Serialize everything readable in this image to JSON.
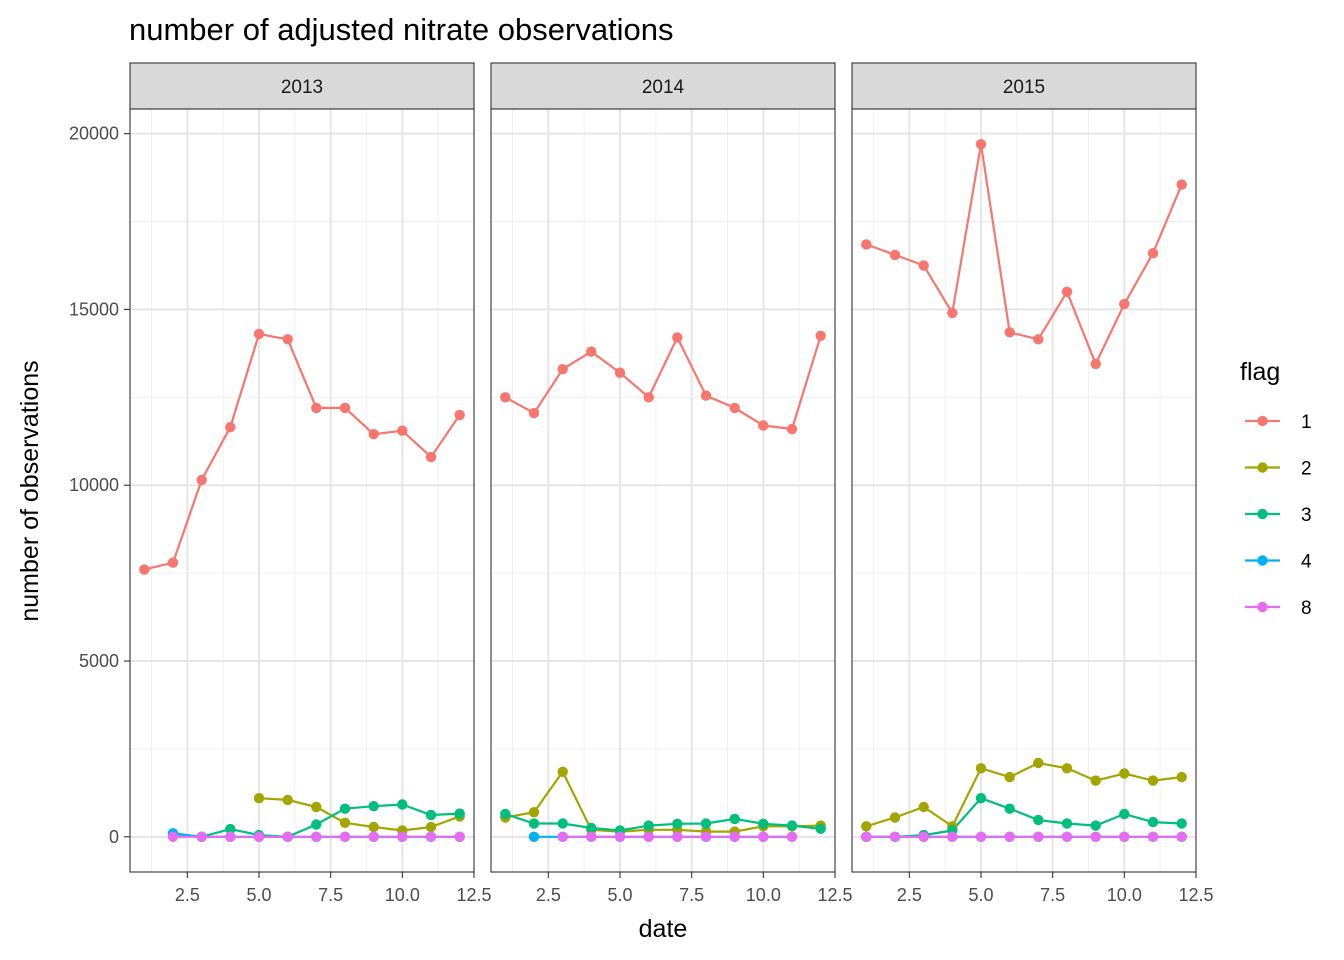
{
  "chart_data": {
    "type": "line",
    "title": "number of adjusted nitrate observations",
    "xlabel": "date",
    "ylabel": "number of observations",
    "xlim": [
      0.5,
      12.5
    ],
    "ylim": [
      -1000,
      20700
    ],
    "x_ticks": [
      2.5,
      5.0,
      7.5,
      10.0,
      12.5
    ],
    "x_tick_labels": [
      "2.5",
      "5.0",
      "7.5",
      "10.0",
      "12.5"
    ],
    "y_ticks": [
      0,
      5000,
      10000,
      15000,
      20000
    ],
    "y_tick_labels": [
      "0",
      "5000",
      "10000",
      "15000",
      "20000"
    ],
    "grid": true,
    "legend": {
      "title": "flag",
      "position": "right"
    },
    "panels": [
      {
        "label": "2013",
        "series": [
          {
            "name": "1",
            "color": "#F8766D",
            "points": [
              [
                1,
                7600
              ],
              [
                2,
                7800
              ],
              [
                3,
                10150
              ],
              [
                4,
                11650
              ],
              [
                5,
                14300
              ],
              [
                6,
                14150
              ],
              [
                7,
                12200
              ],
              [
                8,
                12200
              ],
              [
                9,
                11450
              ],
              [
                10,
                11550
              ],
              [
                11,
                10800
              ],
              [
                12,
                12000
              ]
            ]
          },
          {
            "name": "2",
            "color": "#A3A500",
            "points": [
              [
                5,
                1100
              ],
              [
                6,
                1050
              ],
              [
                7,
                850
              ],
              [
                8,
                400
              ],
              [
                9,
                280
              ],
              [
                10,
                180
              ],
              [
                11,
                280
              ],
              [
                12,
                580
              ]
            ]
          },
          {
            "name": "3",
            "color": "#00BF7D",
            "points": [
              [
                2,
                80
              ],
              [
                3,
                0
              ],
              [
                4,
                220
              ],
              [
                5,
                50
              ],
              [
                6,
                0
              ],
              [
                7,
                350
              ],
              [
                8,
                800
              ],
              [
                9,
                870
              ],
              [
                10,
                920
              ],
              [
                11,
                620
              ],
              [
                12,
                660
              ]
            ]
          },
          {
            "name": "4",
            "color": "#00B0F6",
            "points": [
              [
                2,
                100
              ],
              [
                3,
                0
              ],
              [
                4,
                0
              ],
              [
                5,
                0
              ],
              [
                6,
                0
              ],
              [
                7,
                0
              ],
              [
                8,
                0
              ],
              [
                9,
                0
              ],
              [
                10,
                0
              ],
              [
                11,
                0
              ],
              [
                12,
                0
              ]
            ]
          },
          {
            "name": "8",
            "color": "#E76BF3",
            "points": [
              [
                2,
                0
              ],
              [
                3,
                0
              ],
              [
                4,
                0
              ],
              [
                5,
                0
              ],
              [
                6,
                0
              ],
              [
                7,
                0
              ],
              [
                8,
                0
              ],
              [
                9,
                0
              ],
              [
                10,
                0
              ],
              [
                11,
                0
              ],
              [
                12,
                0
              ]
            ]
          }
        ]
      },
      {
        "label": "2014",
        "series": [
          {
            "name": "1",
            "color": "#F8766D",
            "points": [
              [
                1,
                12500
              ],
              [
                2,
                12050
              ],
              [
                3,
                13300
              ],
              [
                4,
                13800
              ],
              [
                5,
                13200
              ],
              [
                6,
                12500
              ],
              [
                7,
                14200
              ],
              [
                8,
                12550
              ],
              [
                9,
                12200
              ],
              [
                10,
                11700
              ],
              [
                11,
                11600
              ],
              [
                12,
                14250
              ]
            ]
          },
          {
            "name": "2",
            "color": "#A3A500",
            "points": [
              [
                1,
                550
              ],
              [
                2,
                700
              ],
              [
                3,
                1850
              ],
              [
                4,
                200
              ],
              [
                5,
                150
              ],
              [
                6,
                200
              ],
              [
                7,
                200
              ],
              [
                8,
                150
              ],
              [
                9,
                150
              ],
              [
                10,
                300
              ],
              [
                11,
                300
              ],
              [
                12,
                320
              ]
            ]
          },
          {
            "name": "3",
            "color": "#00BF7D",
            "points": [
              [
                1,
                650
              ],
              [
                2,
                380
              ],
              [
                3,
                380
              ],
              [
                4,
                250
              ],
              [
                5,
                180
              ],
              [
                6,
                320
              ],
              [
                7,
                370
              ],
              [
                8,
                380
              ],
              [
                9,
                510
              ],
              [
                10,
                370
              ],
              [
                11,
                320
              ],
              [
                12,
                230
              ]
            ]
          },
          {
            "name": "4",
            "color": "#00B0F6",
            "points": [
              [
                2,
                0
              ],
              [
                3,
                0
              ],
              [
                4,
                0
              ],
              [
                5,
                0
              ],
              [
                6,
                0
              ],
              [
                7,
                0
              ],
              [
                8,
                0
              ],
              [
                9,
                0
              ],
              [
                10,
                0
              ],
              [
                11,
                0
              ]
            ]
          },
          {
            "name": "8",
            "color": "#E76BF3",
            "points": [
              [
                3,
                0
              ],
              [
                4,
                0
              ],
              [
                5,
                0
              ],
              [
                6,
                0
              ],
              [
                7,
                0
              ],
              [
                8,
                0
              ],
              [
                9,
                0
              ],
              [
                10,
                0
              ],
              [
                11,
                0
              ]
            ]
          }
        ]
      },
      {
        "label": "2015",
        "series": [
          {
            "name": "1",
            "color": "#F8766D",
            "points": [
              [
                1,
                16850
              ],
              [
                2,
                16550
              ],
              [
                3,
                16250
              ],
              [
                4,
                14900
              ],
              [
                5,
                19700
              ],
              [
                6,
                14350
              ],
              [
                7,
                14150
              ],
              [
                8,
                15500
              ],
              [
                9,
                13450
              ],
              [
                10,
                15150
              ],
              [
                11,
                16600
              ],
              [
                12,
                18550
              ]
            ]
          },
          {
            "name": "2",
            "color": "#A3A500",
            "points": [
              [
                1,
                300
              ],
              [
                2,
                550
              ],
              [
                3,
                850
              ],
              [
                4,
                300
              ],
              [
                5,
                1950
              ],
              [
                6,
                1700
              ],
              [
                7,
                2100
              ],
              [
                8,
                1950
              ],
              [
                9,
                1600
              ],
              [
                10,
                1800
              ],
              [
                11,
                1600
              ],
              [
                12,
                1700
              ]
            ]
          },
          {
            "name": "3",
            "color": "#00BF7D",
            "points": [
              [
                1,
                0
              ],
              [
                2,
                0
              ],
              [
                3,
                50
              ],
              [
                4,
                180
              ],
              [
                5,
                1100
              ],
              [
                6,
                800
              ],
              [
                7,
                480
              ],
              [
                8,
                380
              ],
              [
                9,
                320
              ],
              [
                10,
                650
              ],
              [
                11,
                420
              ],
              [
                12,
                380
              ]
            ]
          },
          {
            "name": "4",
            "color": "#00B0F6",
            "points": [
              [
                1,
                0
              ],
              [
                2,
                0
              ],
              [
                3,
                0
              ],
              [
                4,
                0
              ],
              [
                5,
                0
              ],
              [
                6,
                0
              ],
              [
                7,
                0
              ],
              [
                8,
                0
              ],
              [
                9,
                0
              ],
              [
                10,
                0
              ],
              [
                11,
                0
              ],
              [
                12,
                0
              ]
            ]
          },
          {
            "name": "8",
            "color": "#E76BF3",
            "points": [
              [
                1,
                0
              ],
              [
                2,
                0
              ],
              [
                3,
                0
              ],
              [
                4,
                0
              ],
              [
                5,
                0
              ],
              [
                6,
                0
              ],
              [
                7,
                0
              ],
              [
                8,
                0
              ],
              [
                9,
                0
              ],
              [
                10,
                0
              ],
              [
                11,
                0
              ],
              [
                12,
                0
              ]
            ]
          }
        ]
      }
    ],
    "legend_entries": [
      {
        "name": "1",
        "color": "#F8766D"
      },
      {
        "name": "2",
        "color": "#A3A500"
      },
      {
        "name": "3",
        "color": "#00BF7D"
      },
      {
        "name": "4",
        "color": "#00B0F6"
      },
      {
        "name": "8",
        "color": "#E76BF3"
      }
    ]
  }
}
